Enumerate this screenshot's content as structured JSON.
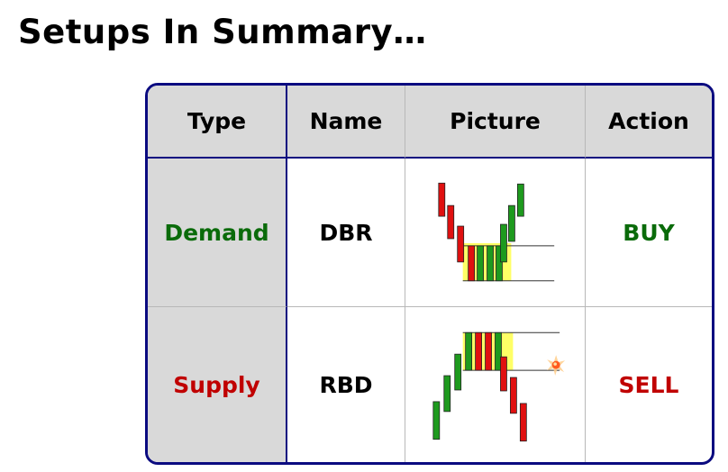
{
  "title": "Setups In Summary…",
  "headers": {
    "type": "Type",
    "name": "Name",
    "picture": "Picture",
    "action": "Action"
  },
  "rows": [
    {
      "type": "Demand",
      "name": "DBR",
      "action": "BUY",
      "type_color": "#0a6b0a",
      "action_color": "#0a6b0a",
      "picture": "drop-base-rally-candles"
    },
    {
      "type": "Supply",
      "name": "RBD",
      "action": "SELL",
      "type_color": "#c00000",
      "action_color": "#c00000",
      "picture": "rally-base-drop-candles"
    }
  ],
  "colors": {
    "border": "#0b0b80",
    "header_bg": "#d9d9d9",
    "bull_candle": "#1e9a1e",
    "bear_candle": "#e01010",
    "zone_highlight": "#ffff66"
  }
}
